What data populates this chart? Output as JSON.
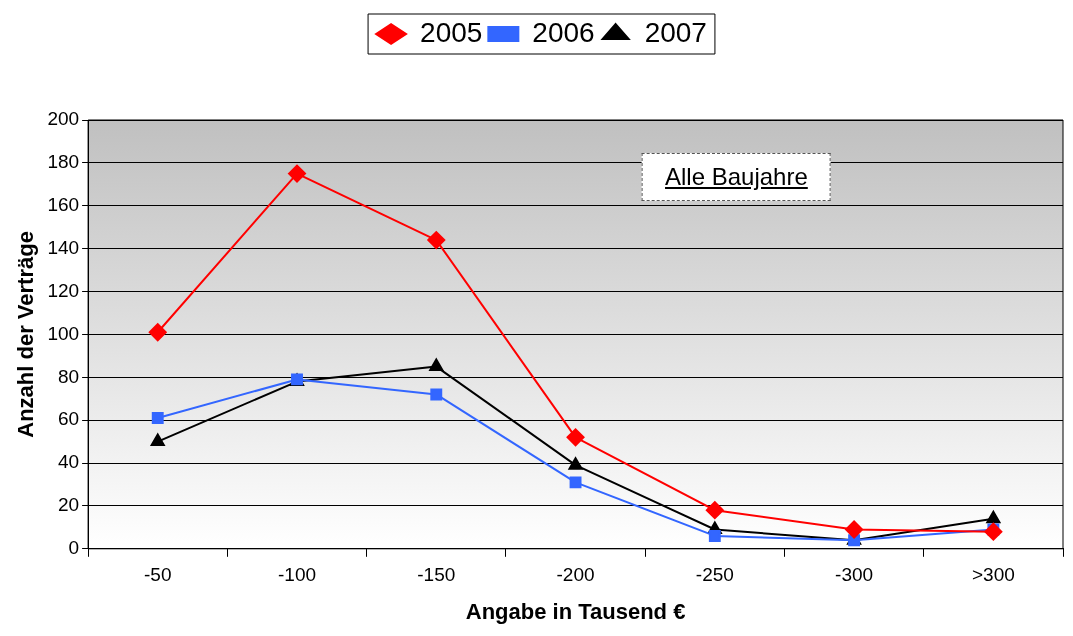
{
  "chart_data": {
    "type": "line",
    "xlabel": "Angabe in Tausend €",
    "ylabel": "Anzahl der Verträge",
    "categories": [
      "-50",
      "-100",
      "-150",
      "-200",
      "-250",
      "-300",
      ">300"
    ],
    "series": [
      {
        "name": "2005",
        "color": "#ff0000",
        "marker": "diamond",
        "values": [
          101,
          175,
          144,
          52,
          18,
          9,
          8
        ]
      },
      {
        "name": "2006",
        "color": "#3366ff",
        "marker": "square",
        "values": [
          61,
          79,
          72,
          31,
          6,
          4,
          9
        ]
      },
      {
        "name": "2007",
        "color": "#000000",
        "marker": "triangle",
        "values": [
          50,
          78,
          85,
          39,
          9,
          4,
          14
        ]
      }
    ],
    "ylim": [
      0,
      200
    ],
    "yticks": [
      0,
      20,
      40,
      60,
      80,
      100,
      120,
      140,
      160,
      180,
      200
    ],
    "grid": "y",
    "legend": "top",
    "annotations": [
      "Alle Baujahre"
    ]
  }
}
